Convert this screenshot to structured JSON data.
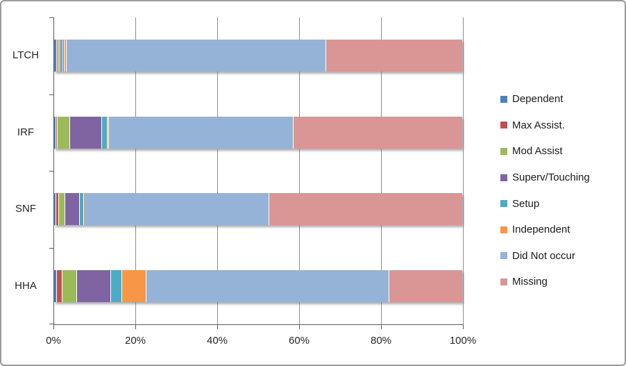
{
  "chart_data": {
    "type": "bar",
    "orientation": "horizontal",
    "stacked": true,
    "title": "",
    "xlabel": "",
    "ylabel": "",
    "xlim": [
      0,
      100
    ],
    "x_ticks": [
      "0%",
      "20%",
      "40%",
      "60%",
      "80%",
      "100%"
    ],
    "grid": "vertical",
    "legend_position": "right",
    "categories": [
      "LTCH",
      "IRF",
      "SNF",
      "HHA"
    ],
    "series": [
      {
        "name": "Dependent",
        "color": "#4F81BD",
        "values": [
          0.5,
          0.4,
          0.3,
          0.6
        ]
      },
      {
        "name": "Max Assist.",
        "color": "#C0504D",
        "values": [
          0.2,
          0.1,
          0.5,
          1.1
        ]
      },
      {
        "name": "Mod Assist",
        "color": "#9BBB59",
        "values": [
          0.3,
          3.0,
          1.4,
          3.5
        ]
      },
      {
        "name": "Superv/Touching",
        "color": "#8064A2",
        "values": [
          0.4,
          7.6,
          3.5,
          8.3
        ]
      },
      {
        "name": "Setup",
        "color": "#4BACC6",
        "values": [
          0.3,
          1.3,
          0.8,
          2.5
        ]
      },
      {
        "name": "Independent",
        "color": "#F79646",
        "values": [
          0.4,
          0.1,
          0.1,
          5.8
        ]
      },
      {
        "name": "Did Not occur",
        "color": "#95B3D7",
        "values": [
          64.2,
          45.6,
          45.6,
          60.2
        ]
      },
      {
        "name": "Missing",
        "color": "#D99694",
        "values": [
          33.7,
          41.9,
          47.8,
          18.0
        ]
      }
    ],
    "colors": {
      "gridline": "#8c8c8c",
      "axis": "#5a5a5a",
      "text": "#262626"
    }
  }
}
